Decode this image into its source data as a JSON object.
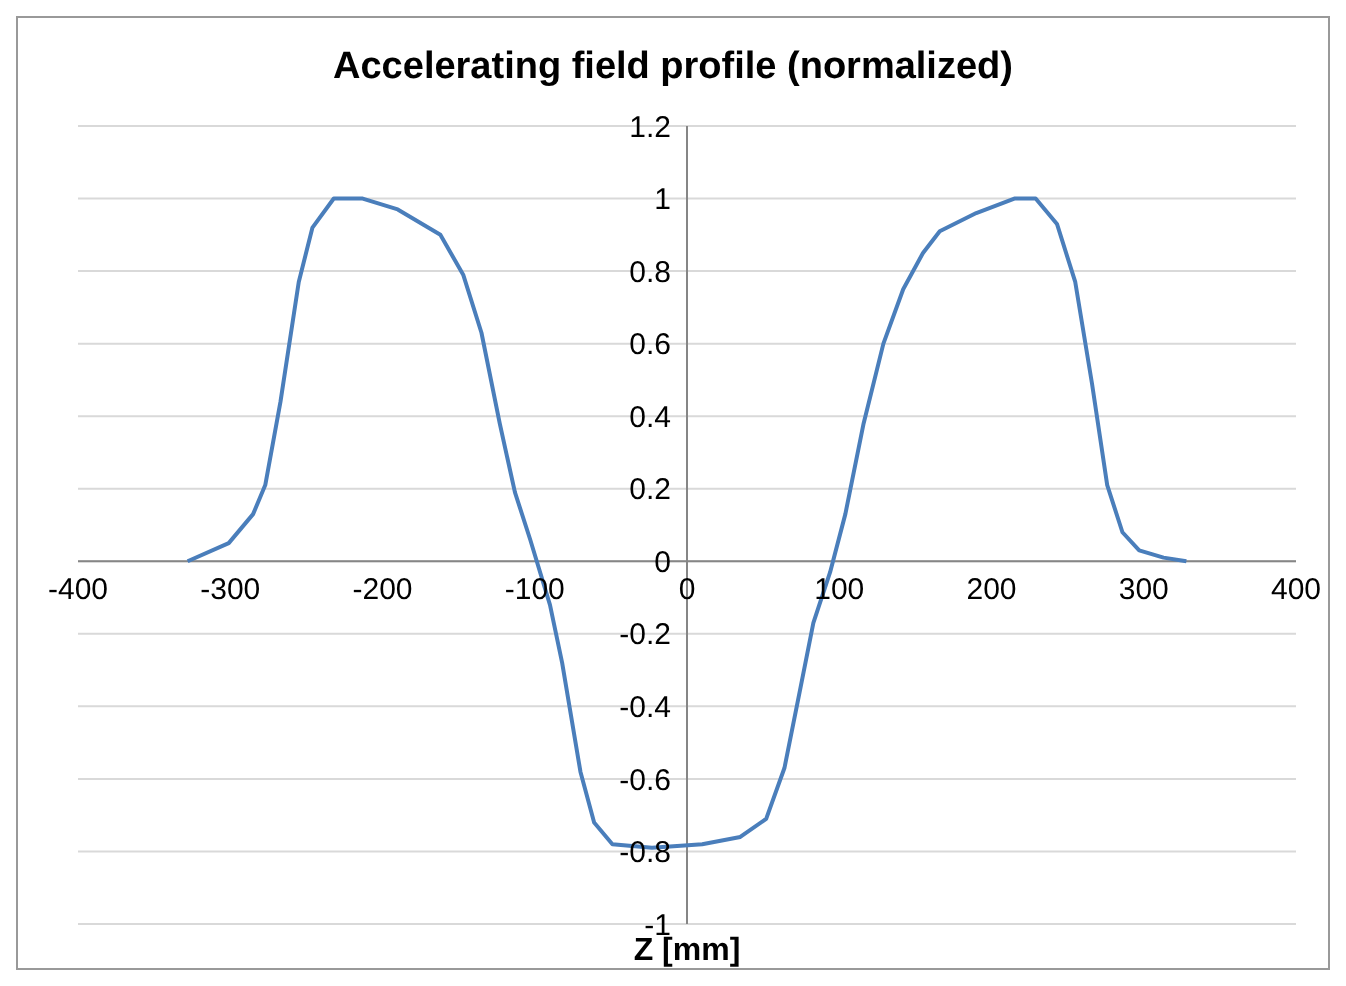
{
  "chart_data": {
    "type": "line",
    "title": "Accelerating field profile (normalized)",
    "xlabel": "Z [mm]",
    "x": [
      -328,
      -301,
      -285,
      -277,
      -267,
      -255,
      -246,
      -232,
      -213,
      -190,
      -162,
      -147,
      -135,
      -123,
      -113,
      -103,
      -90,
      -82,
      -70,
      -61,
      -49,
      -23,
      10,
      35,
      52,
      64,
      74,
      83,
      94,
      104,
      116,
      129,
      142,
      155,
      166,
      190,
      215,
      229,
      243,
      255,
      266,
      276,
      286,
      297,
      313,
      328
    ],
    "series": [
      {
        "color": "#4a7ebb",
        "values": [
          0,
          0.05,
          0.13,
          0.21,
          0.44,
          0.77,
          0.92,
          1.0,
          1.0,
          0.97,
          0.9,
          0.79,
          0.63,
          0.38,
          0.19,
          0.06,
          -0.12,
          -0.28,
          -0.58,
          -0.72,
          -0.78,
          -0.79,
          -0.78,
          -0.76,
          -0.71,
          -0.57,
          -0.36,
          -0.17,
          -0.03,
          0.13,
          0.38,
          0.6,
          0.75,
          0.85,
          0.91,
          0.96,
          1.0,
          1.0,
          0.93,
          0.77,
          0.49,
          0.21,
          0.08,
          0.03,
          0.01,
          0
        ]
      }
    ],
    "xlim": [
      -400,
      400
    ],
    "xticks": [
      -400,
      -300,
      -200,
      -100,
      0,
      100,
      200,
      300,
      400
    ],
    "ylim": [
      -1,
      1.2
    ],
    "yticks": [
      -1,
      -0.8,
      -0.6,
      -0.4,
      -0.2,
      0,
      0.2,
      0.4,
      0.6,
      0.8,
      1,
      1.2
    ],
    "grid": "y",
    "marker": "none",
    "line_style": "solid"
  }
}
